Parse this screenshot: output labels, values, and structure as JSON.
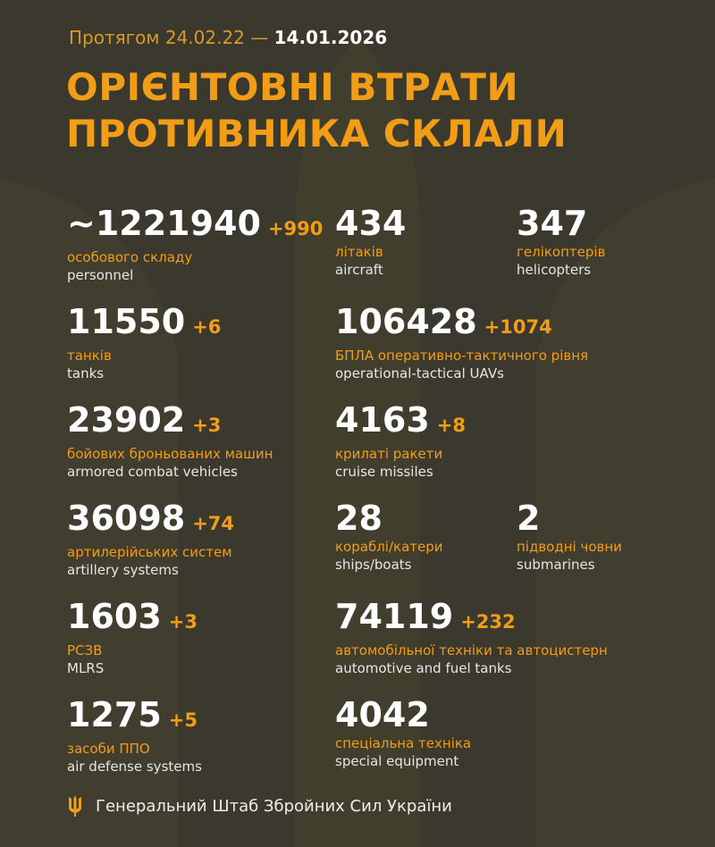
{
  "header": {
    "period_prefix": "Протягом 24.02.22 —",
    "period_end": "14.01.2026",
    "title_line1": "ОРІЄНТОВНІ ВТРАТИ",
    "title_line2": "ПРОТИВНИКА СКЛАЛИ"
  },
  "stats": [
    {
      "value": "~1221940",
      "delta": "+990",
      "ua": "особового складу",
      "en": "personnel"
    },
    {
      "value": "434",
      "delta": "",
      "ua": "літаків",
      "en": "aircraft"
    },
    {
      "value": "347",
      "delta": "",
      "ua": "гелікоптерів",
      "en": "helicopters"
    },
    {
      "value": "11550",
      "delta": "+6",
      "ua": "танків",
      "en": "tanks"
    },
    {
      "value": "106428",
      "delta": "+1074",
      "ua": "БПЛА оперативно-тактичного рівня",
      "en": "operational-tactical UAVs"
    },
    {
      "value": "23902",
      "delta": "+3",
      "ua": "бойових броньованих машин",
      "en": "armored combat vehicles"
    },
    {
      "value": "4163",
      "delta": "+8",
      "ua": "крилаті ракети",
      "en": "cruise missiles"
    },
    {
      "value": "36098",
      "delta": "+74",
      "ua": "артилерійських систем",
      "en": "artillery systems"
    },
    {
      "value": "28",
      "delta": "",
      "ua": "кораблі/катери",
      "en": "ships/boats"
    },
    {
      "value": "2",
      "delta": "",
      "ua": "підводні човни",
      "en": "submarines"
    },
    {
      "value": "1603",
      "delta": "+3",
      "ua": "РСЗВ",
      "en": "MLRS"
    },
    {
      "value": "74119",
      "delta": "+232",
      "ua": "автомобільної техніки та автоцистерн",
      "en": "automotive and fuel tanks"
    },
    {
      "value": "1275",
      "delta": "+5",
      "ua": "засоби ППО",
      "en": "air defense systems"
    },
    {
      "value": "4042",
      "delta": "",
      "ua": "спеціальна техніка",
      "en": "special equipment"
    }
  ],
  "footer": {
    "text": "Генеральний Штаб Збройних Сил України",
    "icon": "trident-icon"
  },
  "colors": {
    "background": "#3b382d",
    "accent": "#f29d18",
    "text": "#ffffff"
  }
}
